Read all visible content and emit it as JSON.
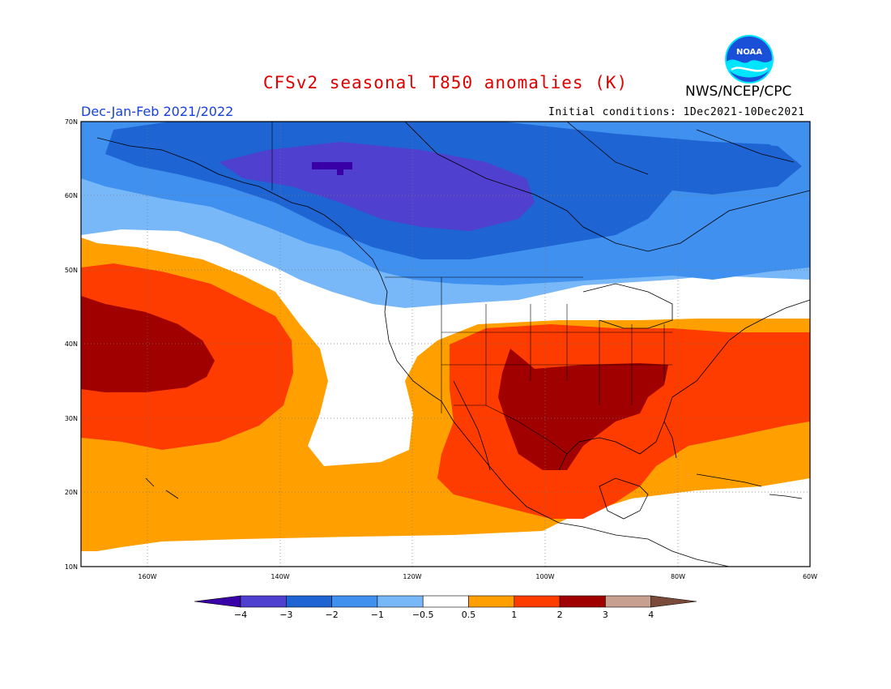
{
  "title": "CFSv2 seasonal T850 anomalies (K)",
  "agency": "NWS/NCEP/CPC",
  "logo_text": "NOAA",
  "period": "Dec-Jan-Feb 2021/2022",
  "initial_conditions": "Initial conditions: 1Dec2021-10Dec2021",
  "map": {
    "lon_range": [
      -172,
      -60
    ],
    "lat_range": [
      10,
      70
    ],
    "lat_ticks": [
      "70N",
      "60N",
      "50N",
      "40N",
      "30N",
      "20N",
      "10N"
    ],
    "lon_ticks": [
      "160W",
      "140W",
      "120W",
      "100W",
      "80W",
      "60W"
    ]
  },
  "colorbar": {
    "levels": [
      "-4",
      "-3",
      "-2",
      "-1",
      "-0.5",
      "0.5",
      "1",
      "2",
      "3",
      "4"
    ],
    "colors": [
      "#3a00a8",
      "#5040d0",
      "#1e64d2",
      "#4090f0",
      "#78b8f8",
      "#ffffff",
      "#ffa000",
      "#ff3c00",
      "#a00000",
      "#c8a090",
      "#7a4a3a"
    ]
  }
}
